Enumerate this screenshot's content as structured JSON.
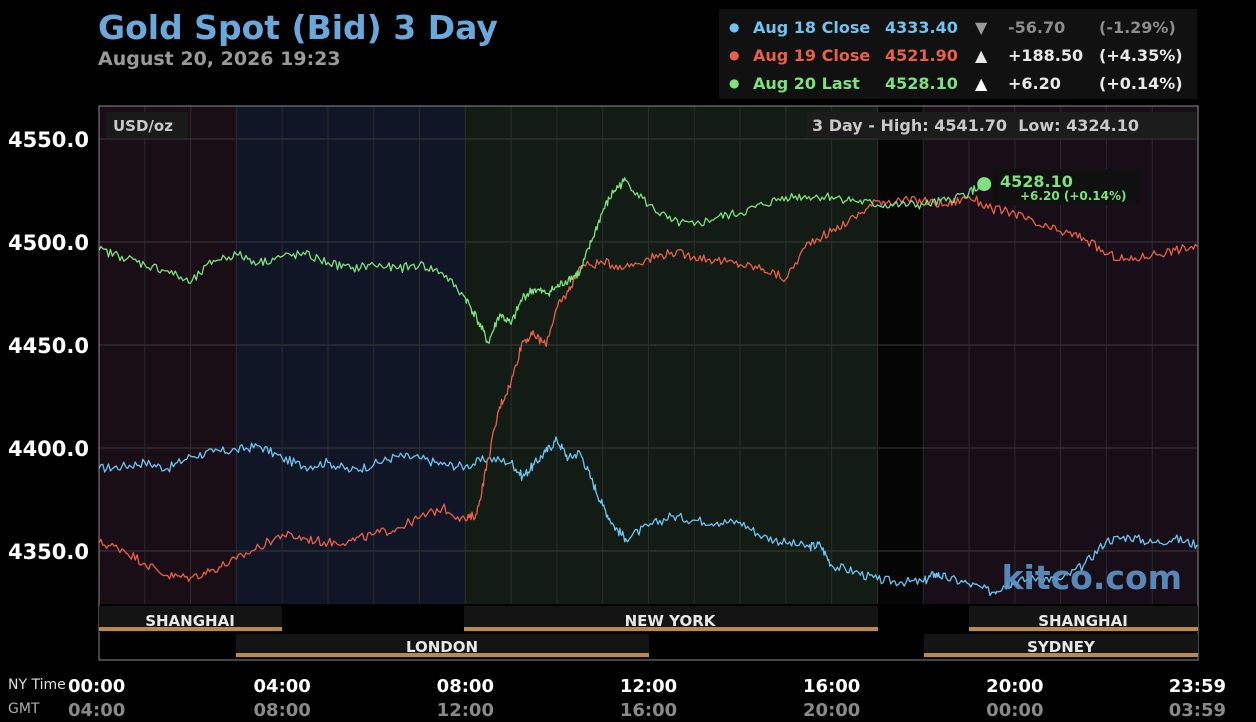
{
  "title": "Gold Spot (Bid) 3 Day",
  "subtitle": "August 20, 2026 19:23",
  "legend": [
    {
      "label": "Aug 18 Close",
      "value": "4333.40",
      "arrow": "▼",
      "change": "-56.70",
      "pct": "(-1.29%)",
      "color": "#6fc3f0"
    },
    {
      "label": "Aug 19 Close",
      "value": "4521.90",
      "arrow": "▲",
      "change": "+188.50",
      "pct": "(+4.35%)",
      "color": "#e8604c"
    },
    {
      "label": "Aug 20 Last",
      "value": "4528.10",
      "arrow": "▲",
      "change": "+6.20",
      "pct": "(+0.14%)",
      "color": "#7ee07e"
    }
  ],
  "unit_label": "USD/oz",
  "range_label": "3 Day - High: 4541.70  Low: 4324.10",
  "last_marker": {
    "price": "4528.10",
    "change": "+6.20 (+0.14%)"
  },
  "watermark": "kitco.com",
  "axis_row_labels": {
    "ny": "NY Time",
    "gmt": "GMT"
  },
  "sessions": [
    {
      "name": "SHANGHAI",
      "row": 1
    },
    {
      "name": "NEW YORK",
      "row": 1
    },
    {
      "name": "SHANGHAI",
      "row": 1
    },
    {
      "name": "LONDON",
      "row": 2
    },
    {
      "name": "SYDNEY",
      "row": 2
    }
  ],
  "chart_data": {
    "type": "line",
    "title": "Gold Spot (Bid) 3 Day",
    "ylabel": "USD/oz",
    "ylim": [
      4315,
      4565
    ],
    "y_ticks": [
      4350.0,
      4400.0,
      4450.0,
      4500.0,
      4550.0
    ],
    "y_tick_labels": [
      "4350.0",
      "4400.0",
      "4450.0",
      "4500.0",
      "4550.0"
    ],
    "x_tick_labels_ny": [
      "00:00",
      "04:00",
      "08:00",
      "12:00",
      "16:00",
      "20:00",
      "23:59"
    ],
    "x_tick_labels_gmt": [
      "04:00",
      "08:00",
      "12:00",
      "16:00",
      "20:00",
      "00:00",
      "03:59"
    ],
    "x_ticks_hours": [
      0,
      4,
      8,
      12,
      16,
      20,
      23.98
    ],
    "grid": true,
    "legend_position": "top-right",
    "series": [
      {
        "name": "Aug 18 Close",
        "color": "#6fc3f0",
        "x": [
          0,
          0.5,
          1,
          1.5,
          2,
          2.5,
          3,
          3.5,
          4,
          4.5,
          5,
          5.5,
          6,
          6.5,
          7,
          7.5,
          8,
          8.5,
          9,
          9.25,
          9.5,
          9.75,
          10,
          10.25,
          10.5,
          10.75,
          11,
          11.25,
          11.5,
          12,
          12.5,
          13,
          13.5,
          14,
          14.5,
          15,
          15.5,
          15.75,
          16,
          16.5,
          17,
          17.5,
          18,
          18.25,
          18.5,
          19,
          19.5,
          19.75,
          20,
          20.5,
          21,
          21.5,
          22,
          22.5,
          23,
          23.5,
          23.98
        ],
        "y": [
          4390,
          4391,
          4393,
          4390,
          4396,
          4398,
          4399,
          4401,
          4395,
          4391,
          4393,
          4389,
          4392,
          4396,
          4395,
          4392,
          4391,
          4395,
          4393,
          4386,
          4392,
          4398,
          4404,
          4395,
          4398,
          4385,
          4372,
          4362,
          4356,
          4362,
          4367,
          4365,
          4364,
          4364,
          4357,
          4354,
          4352,
          4353,
          4343,
          4340,
          4336,
          4335,
          4335,
          4339,
          4337,
          4334,
          4330,
          4333,
          4335,
          4337,
          4336,
          4343,
          4355,
          4357,
          4354,
          4356,
          4353
        ]
      },
      {
        "name": "Aug 19 Close",
        "color": "#e8604c",
        "x": [
          0,
          0.5,
          1,
          1.5,
          2,
          2.5,
          3,
          3.5,
          4,
          4.5,
          5,
          5.5,
          6,
          6.5,
          7,
          7.5,
          8,
          8.25,
          8.5,
          8.75,
          9,
          9.25,
          9.5,
          9.75,
          10,
          10.25,
          10.5,
          11,
          11.5,
          12,
          12.5,
          13,
          13.5,
          14,
          14.5,
          15,
          15.5,
          16,
          16.5,
          17,
          17.5,
          18,
          18.5,
          19,
          19.5,
          20,
          20.5,
          21,
          21.5,
          22,
          22.5,
          23,
          23.5,
          23.98
        ],
        "y": [
          4354,
          4351,
          4344,
          4338,
          4337,
          4341,
          4346,
          4352,
          4358,
          4356,
          4354,
          4355,
          4358,
          4361,
          4366,
          4371,
          4365,
          4368,
          4395,
          4420,
          4432,
          4452,
          4455,
          4450,
          4468,
          4476,
          4488,
          4490,
          4488,
          4492,
          4495,
          4493,
          4491,
          4489,
          4487,
          4482,
          4500,
          4505,
          4512,
          4520,
          4520,
          4520,
          4518,
          4522,
          4516,
          4514,
          4508,
          4505,
          4502,
          4494,
          4491,
          4494,
          4496,
          4498
        ]
      },
      {
        "name": "Aug 20 Last",
        "color": "#7ee07e",
        "x": [
          0,
          0.5,
          1,
          1.5,
          2,
          2.5,
          3,
          3.5,
          4,
          4.5,
          5,
          5.5,
          6,
          6.5,
          7,
          7.5,
          8,
          8.25,
          8.5,
          8.75,
          9,
          9.25,
          9.5,
          9.75,
          10,
          10.25,
          10.5,
          10.75,
          11,
          11.25,
          11.5,
          12,
          12.5,
          13,
          13.5,
          14,
          14.5,
          15,
          15.5,
          16,
          16.5,
          17,
          17.5,
          18,
          18.5,
          19,
          19.33
        ],
        "y": [
          4496,
          4493,
          4489,
          4486,
          4480,
          4491,
          4494,
          4490,
          4493,
          4494,
          4490,
          4487,
          4489,
          4487,
          4489,
          4485,
          4473,
          4463,
          4451,
          4465,
          4460,
          4473,
          4477,
          4475,
          4478,
          4482,
          4485,
          4500,
          4515,
          4525,
          4530,
          4518,
          4510,
          4508,
          4512,
          4514,
          4518,
          4522,
          4522,
          4522,
          4520,
          4518,
          4518,
          4518,
          4520,
          4524,
          4528.1
        ]
      }
    ]
  }
}
